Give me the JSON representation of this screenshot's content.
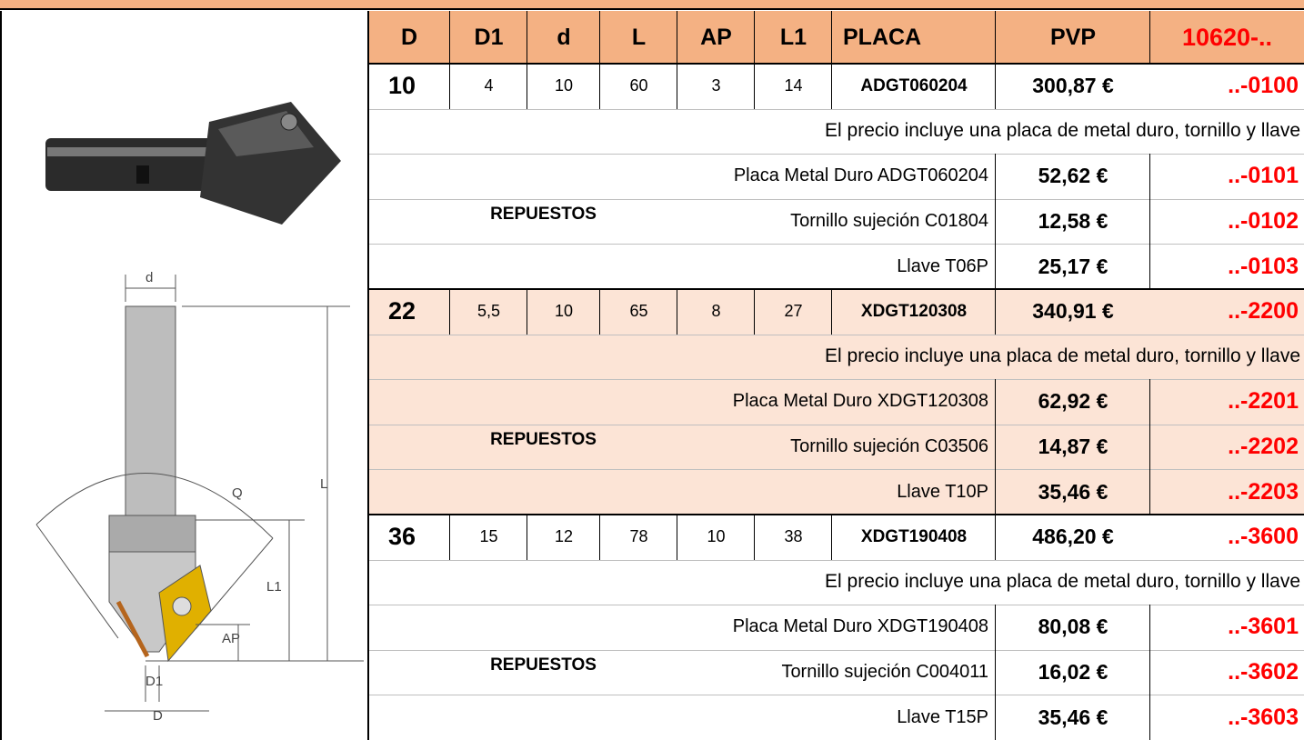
{
  "header": {
    "columns": [
      "D",
      "D1",
      "d",
      "L",
      "AP",
      "L1",
      "PLACA",
      "PVP"
    ],
    "code": "10620-.."
  },
  "drawing_labels": [
    "d",
    "L",
    "Q",
    "L1",
    "AP",
    "D1",
    "D"
  ],
  "products": [
    {
      "D": "10",
      "D1": "4",
      "d": "10",
      "L": "60",
      "AP": "3",
      "L1": "14",
      "placa": "ADGT060204",
      "price": "300,87 €",
      "code": "..-0100",
      "note": "El precio incluye una placa de metal duro, tornillo y llave",
      "spares_label": "REPUESTOS",
      "spares": [
        {
          "desc": "Placa Metal Duro ADGT060204",
          "price": "52,62 €",
          "code": "..-0101"
        },
        {
          "desc": "Tornillo sujeción C01804",
          "price": "12,58 €",
          "code": "..-0102"
        },
        {
          "desc": "Llave T06P",
          "price": "25,17 €",
          "code": "..-0103"
        }
      ]
    },
    {
      "D": "22",
      "D1": "5,5",
      "d": "10",
      "L": "65",
      "AP": "8",
      "L1": "27",
      "placa": "XDGT120308",
      "price": "340,91 €",
      "code": "..-2200",
      "note": "El precio incluye una placa de metal duro, tornillo y llave",
      "spares_label": "REPUESTOS",
      "spares": [
        {
          "desc": "Placa Metal Duro XDGT120308",
          "price": "62,92 €",
          "code": "..-2201"
        },
        {
          "desc": "Tornillo sujeción C03506",
          "price": "14,87 €",
          "code": "..-2202"
        },
        {
          "desc": "Llave T10P",
          "price": "35,46 €",
          "code": "..-2203"
        }
      ]
    },
    {
      "D": "36",
      "D1": "15",
      "d": "12",
      "L": "78",
      "AP": "10",
      "L1": "38",
      "placa": "XDGT190408",
      "price": "486,20 €",
      "code": "..-3600",
      "note": "El precio incluye una placa de metal duro, tornillo y llave",
      "spares_label": "REPUESTOS",
      "spares": [
        {
          "desc": "Placa Metal Duro XDGT190408",
          "price": "80,08 €",
          "code": "..-3601"
        },
        {
          "desc": "Tornillo sujeción C004011",
          "price": "16,02 €",
          "code": "..-3602"
        },
        {
          "desc": "Llave T15P",
          "price": "35,46 €",
          "code": "..-3603"
        }
      ]
    }
  ]
}
